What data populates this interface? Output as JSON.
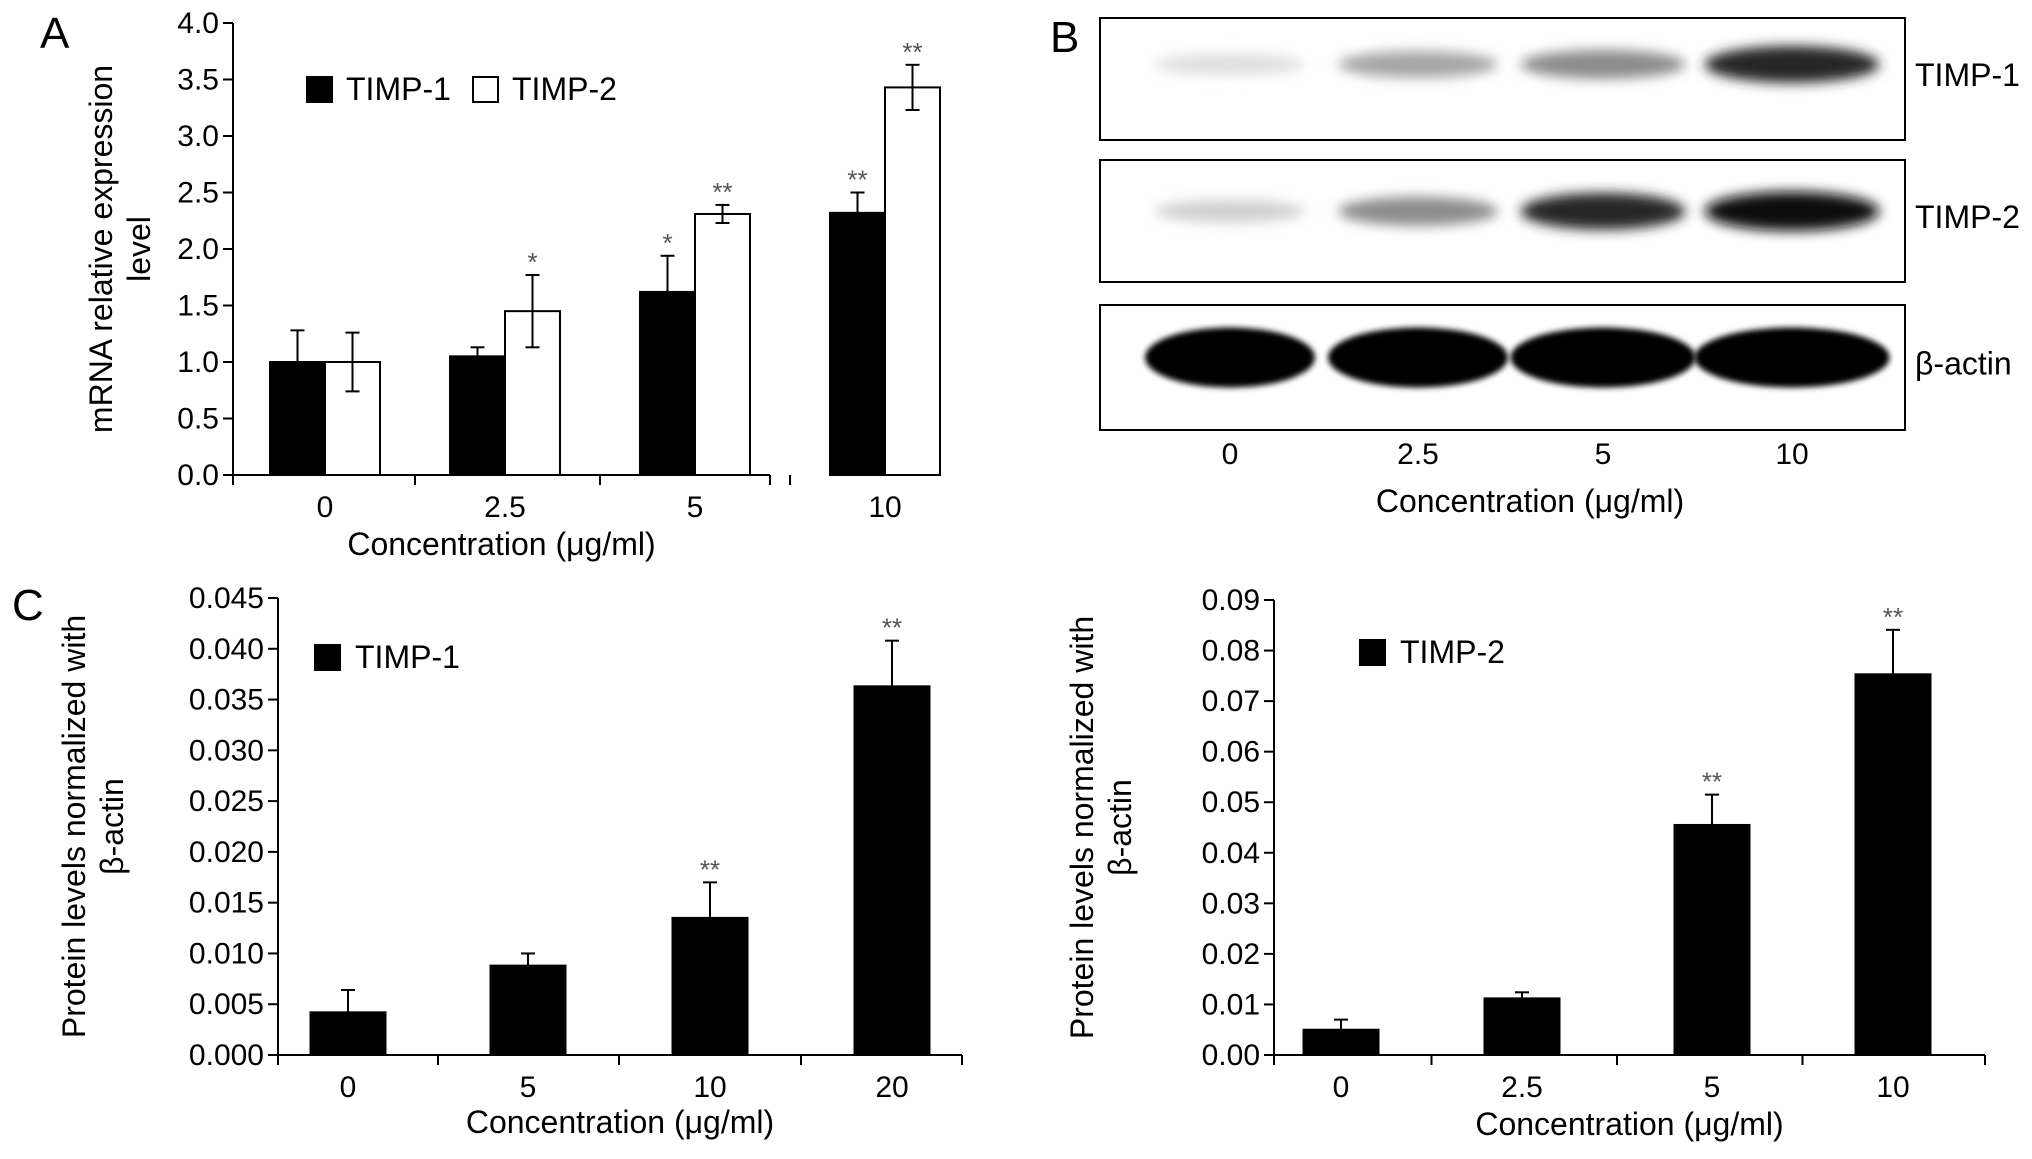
{
  "panels": {
    "a": "A",
    "b": "B",
    "c": "C"
  },
  "colors": {
    "bar_timp1": "#000000",
    "bar_timp2": "#ffffff",
    "star": "#555555"
  },
  "blot": {
    "labels": [
      "TIMP-1",
      "TIMP-2",
      "β-actin"
    ],
    "lanes": [
      "0",
      "2.5",
      "5",
      "10"
    ],
    "xlabel": "Concentration (μg/ml)",
    "intensity": [
      [
        0.12,
        0.35,
        0.45,
        0.85
      ],
      [
        0.18,
        0.45,
        0.85,
        0.97
      ],
      [
        1.0,
        1.0,
        1.0,
        1.0
      ]
    ]
  },
  "chart_data": [
    {
      "type": "bar",
      "categories": [
        "0",
        "2.5",
        "5",
        "10"
      ],
      "series": [
        {
          "name": "TIMP-1",
          "values": [
            1.0,
            1.05,
            1.62,
            2.32
          ],
          "errors": [
            0.28,
            0.08,
            0.32,
            0.18
          ],
          "sig": [
            "",
            "",
            "*",
            "**"
          ]
        },
        {
          "name": "TIMP-2",
          "values": [
            1.0,
            1.45,
            2.31,
            3.43
          ],
          "errors": [
            0.26,
            0.32,
            0.08,
            0.2
          ],
          "sig": [
            "",
            "*",
            "**",
            "**"
          ]
        }
      ],
      "xlabel": "Concentration (μg/ml)",
      "ylabel_lines": [
        "mRNA relative expression",
        "level"
      ],
      "ylim": [
        0,
        4.0
      ],
      "yticks": [
        "0.0",
        "0.5",
        "1.0",
        "1.5",
        "2.0",
        "2.5",
        "3.0",
        "3.5",
        "4.0"
      ],
      "legend": "top-left"
    },
    {
      "type": "bar",
      "categories": [
        "0",
        "5",
        "10",
        "20"
      ],
      "series": [
        {
          "name": "TIMP-1",
          "values": [
            0.0042,
            0.0088,
            0.0135,
            0.0363
          ],
          "errors": [
            0.0022,
            0.0012,
            0.0035,
            0.0045
          ],
          "sig": [
            "",
            "",
            "**",
            "**"
          ]
        }
      ],
      "xlabel": "Concentration (μg/ml)",
      "ylabel_lines": [
        "Protein levels normalized with",
        "β-actin"
      ],
      "ylim": [
        0,
        0.045
      ],
      "yticks": [
        "0.000",
        "0.005",
        "0.010",
        "0.015",
        "0.020",
        "0.025",
        "0.030",
        "0.035",
        "0.040",
        "0.045"
      ],
      "legend": "top-left"
    },
    {
      "type": "bar",
      "categories": [
        "0",
        "2.5",
        "5",
        "10"
      ],
      "series": [
        {
          "name": "TIMP-2",
          "values": [
            0.005,
            0.0112,
            0.0455,
            0.0753
          ],
          "errors": [
            0.002,
            0.0012,
            0.006,
            0.0088
          ],
          "sig": [
            "",
            "",
            "**",
            "**"
          ]
        }
      ],
      "xlabel": "Concentration (μg/ml)",
      "ylabel_lines": [
        "Protein levels normalized with",
        "β-actin"
      ],
      "ylim": [
        0,
        0.09
      ],
      "yticks": [
        "0.00",
        "0.01",
        "0.02",
        "0.03",
        "0.04",
        "0.05",
        "0.06",
        "0.07",
        "0.08",
        "0.09"
      ],
      "legend": "top-left"
    }
  ]
}
